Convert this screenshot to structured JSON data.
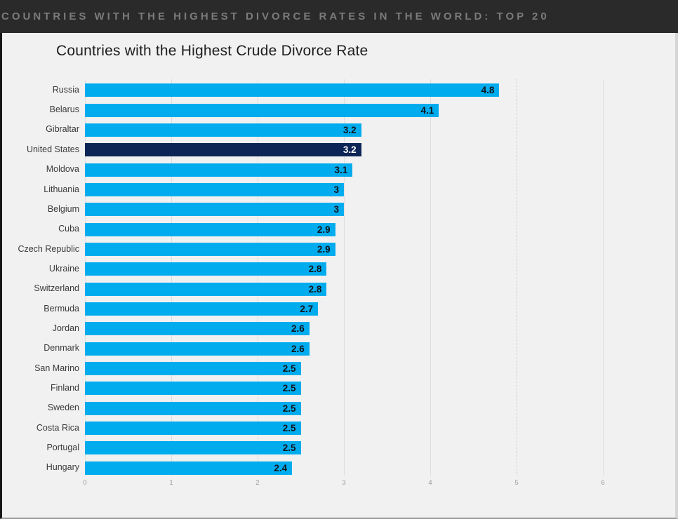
{
  "header": {
    "title": "COUNTRIES WITH THE HIGHEST DIVORCE RATES IN THE WORLD: TOP 20"
  },
  "chart": {
    "title": "Countries with the Highest Crude Divorce Rate"
  },
  "chart_data": {
    "type": "bar",
    "orientation": "horizontal",
    "title": "Countries with the Highest Crude Divorce Rate",
    "categories": [
      "Russia",
      "Belarus",
      "Gibraltar",
      "United States",
      "Moldova",
      "Lithuania",
      "Belgium",
      "Cuba",
      "Czech Republic",
      "Ukraine",
      "Switzerland",
      "Bermuda",
      "Jordan",
      "Denmark",
      "San Marino",
      "Finland",
      "Sweden",
      "Costa Rica",
      "Portugal",
      "Hungary"
    ],
    "values": [
      4.8,
      4.1,
      3.2,
      3.2,
      3.1,
      3,
      3,
      2.9,
      2.9,
      2.8,
      2.8,
      2.7,
      2.6,
      2.6,
      2.5,
      2.5,
      2.5,
      2.5,
      2.5,
      2.4
    ],
    "highlighted_category": "United States",
    "highlight_index": 3,
    "xlabel": "",
    "ylabel": "",
    "xlim": [
      0,
      6
    ],
    "xticks": [
      0,
      1,
      2,
      3,
      4,
      5,
      6
    ],
    "grid": true,
    "legend": false,
    "value_labels_position": "inside-end",
    "colors": {
      "bar": "#00ACEE",
      "highlight_bar": "#0D2456",
      "value_label": "#10141C",
      "value_label_highlight": "#FFFFFF",
      "header_background": "#2A2A2A",
      "header_text": "#7B7B7B",
      "card_background": "#F1F1F1",
      "gridline": "#DEDEDE"
    }
  }
}
